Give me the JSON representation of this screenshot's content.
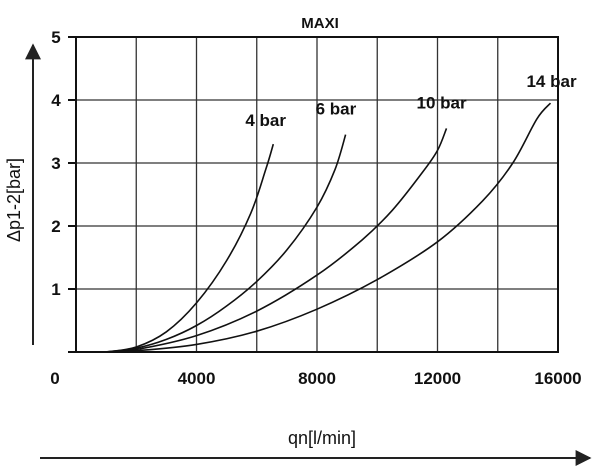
{
  "chart_data": {
    "type": "line",
    "title": "MAXI",
    "xlabel": "qn[l/min]",
    "ylabel": "Δp1-2[bar]",
    "xlim": [
      0,
      16000
    ],
    "ylim": [
      0,
      5
    ],
    "x_ticks": [
      0,
      4000,
      8000,
      12000,
      16000
    ],
    "x_tick_labels": [
      "0",
      "4000",
      "8000",
      "12000",
      "16000"
    ],
    "y_ticks": [
      1,
      2,
      3,
      4,
      5
    ],
    "y_tick_labels": [
      "1",
      "2",
      "3",
      "4",
      "5"
    ],
    "grid": true,
    "series": [
      {
        "name": "4 bar",
        "points": [
          [
            1000,
            0
          ],
          [
            2000,
            0.08
          ],
          [
            3000,
            0.32
          ],
          [
            4000,
            0.78
          ],
          [
            5000,
            1.45
          ],
          [
            5800,
            2.2
          ],
          [
            6300,
            2.9
          ],
          [
            6550,
            3.3
          ]
        ]
      },
      {
        "name": "6 bar",
        "points": [
          [
            1000,
            0
          ],
          [
            2000,
            0.06
          ],
          [
            3000,
            0.2
          ],
          [
            4000,
            0.42
          ],
          [
            5000,
            0.73
          ],
          [
            6000,
            1.12
          ],
          [
            7000,
            1.62
          ],
          [
            8000,
            2.3
          ],
          [
            8600,
            2.9
          ],
          [
            8950,
            3.45
          ]
        ]
      },
      {
        "name": "10 bar",
        "points": [
          [
            1000,
            0
          ],
          [
            2000,
            0.04
          ],
          [
            4000,
            0.26
          ],
          [
            6000,
            0.65
          ],
          [
            8000,
            1.22
          ],
          [
            9500,
            1.78
          ],
          [
            10500,
            2.25
          ],
          [
            11500,
            2.85
          ],
          [
            12000,
            3.2
          ],
          [
            12300,
            3.55
          ]
        ]
      },
      {
        "name": "14 bar",
        "points": [
          [
            1000,
            0
          ],
          [
            2000,
            0.02
          ],
          [
            4000,
            0.12
          ],
          [
            6000,
            0.33
          ],
          [
            8000,
            0.68
          ],
          [
            10000,
            1.15
          ],
          [
            12000,
            1.75
          ],
          [
            13500,
            2.4
          ],
          [
            14500,
            3.0
          ],
          [
            15300,
            3.7
          ],
          [
            15750,
            3.95
          ]
        ]
      }
    ]
  }
}
